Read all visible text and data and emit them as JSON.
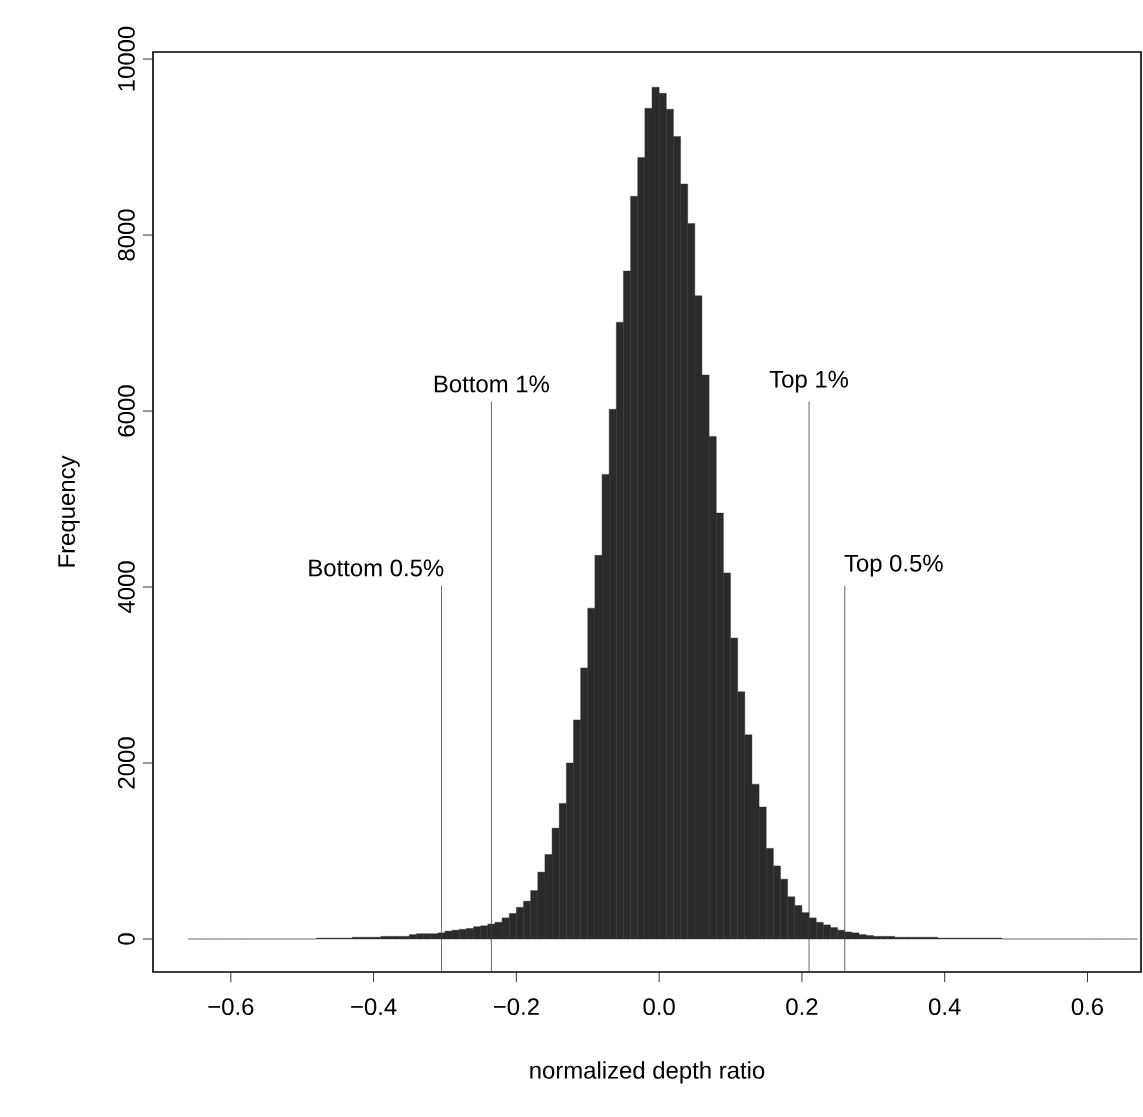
{
  "chart_data": {
    "type": "histogram",
    "xlabel": "normalized depth ratio",
    "ylabel": "Frequency",
    "color": "#2b2b2b",
    "bins": [
      -0.66,
      -0.65,
      -0.64,
      -0.63,
      -0.62,
      -0.61,
      -0.6,
      -0.59,
      -0.58,
      -0.57,
      -0.56,
      -0.55,
      -0.54,
      -0.53,
      -0.52,
      -0.51,
      -0.5,
      -0.49,
      -0.48,
      -0.47,
      -0.46,
      -0.45,
      -0.44,
      -0.43,
      -0.42,
      -0.41,
      -0.4,
      -0.39,
      -0.38,
      -0.37,
      -0.36,
      -0.35,
      -0.34,
      -0.33,
      -0.32,
      -0.31,
      -0.3,
      -0.29,
      -0.28,
      -0.27,
      -0.26,
      -0.25,
      -0.24,
      -0.23,
      -0.22,
      -0.21,
      -0.2,
      -0.19,
      -0.18,
      -0.17,
      -0.16,
      -0.15,
      -0.14,
      -0.13,
      -0.12,
      -0.11,
      -0.1,
      -0.09,
      -0.08,
      -0.07,
      -0.06,
      -0.05,
      -0.04,
      -0.03,
      -0.02,
      -0.01,
      0,
      0.01,
      0.02,
      0.03,
      0.04,
      0.05,
      0.06,
      0.07,
      0.08,
      0.09,
      0.1,
      0.11,
      0.12,
      0.13,
      0.14,
      0.15,
      0.16,
      0.17,
      0.18,
      0.19,
      0.2,
      0.21,
      0.22,
      0.23,
      0.24,
      0.25,
      0.26,
      0.27,
      0.28,
      0.29,
      0.3,
      0.31,
      0.32,
      0.33,
      0.34,
      0.35,
      0.36,
      0.37,
      0.38,
      0.39,
      0.4,
      0.41,
      0.42,
      0.43,
      0.44,
      0.45,
      0.46,
      0.47,
      0.48,
      0.49,
      0.5,
      0.51,
      0.52,
      0.53,
      0.54,
      0.55,
      0.56,
      0.57,
      0.58,
      0.59,
      0.6,
      0.61,
      0.62,
      0.63,
      0.64,
      0.65,
      0.66,
      0.67
    ],
    "values": [
      0,
      0,
      0,
      0,
      0,
      0,
      0,
      0,
      0,
      0,
      0,
      0,
      0,
      0,
      0,
      0,
      0,
      0,
      10,
      10,
      10,
      10,
      10,
      20,
      20,
      20,
      20,
      30,
      30,
      30,
      30,
      50,
      60,
      60,
      60,
      70,
      90,
      100,
      110,
      120,
      140,
      150,
      170,
      190,
      240,
      290,
      360,
      430,
      550,
      760,
      960,
      1260,
      1540,
      2000,
      2490,
      3080,
      3760,
      4360,
      5280,
      6020,
      7010,
      7590,
      8440,
      8880,
      9440,
      9680,
      9610,
      9430,
      9120,
      8580,
      8130,
      7310,
      6410,
      5710,
      4840,
      4160,
      3420,
      2810,
      2320,
      1760,
      1500,
      1030,
      830,
      680,
      480,
      380,
      300,
      240,
      190,
      160,
      130,
      100,
      80,
      70,
      50,
      40,
      30,
      30,
      30,
      20,
      20,
      20,
      20,
      20,
      20,
      10,
      10,
      10,
      10,
      10,
      10,
      10,
      10,
      10,
      0,
      0,
      0,
      0,
      0,
      0,
      0,
      0,
      0,
      0,
      0,
      0,
      0,
      0,
      0,
      0,
      0,
      0,
      0
    ],
    "xlim": [
      -0.709,
      0.675
    ],
    "ylim": [
      -375,
      10080
    ],
    "xticks": [
      {
        "value": -0.6,
        "label": "−0.6"
      },
      {
        "value": -0.4,
        "label": "−0.4"
      },
      {
        "value": -0.2,
        "label": "−0.2"
      },
      {
        "value": 0,
        "label": "0.0"
      },
      {
        "value": 0.2,
        "label": "0.2"
      },
      {
        "value": 0.4,
        "label": "0.4"
      },
      {
        "value": 0.6,
        "label": "0.6"
      }
    ],
    "yticks": [
      0,
      2000,
      4000,
      6000,
      8000,
      10000
    ],
    "ref_lines": [
      {
        "axis": "x",
        "value": -0.305,
        "label": "Bottom 0.5%"
      },
      {
        "axis": "x",
        "value": -0.235,
        "label": "Bottom 1%"
      },
      {
        "axis": "x",
        "value": 0.21,
        "label": "Top 1%"
      },
      {
        "axis": "x",
        "value": 0.26,
        "label": "Top 0.5%"
      }
    ]
  }
}
